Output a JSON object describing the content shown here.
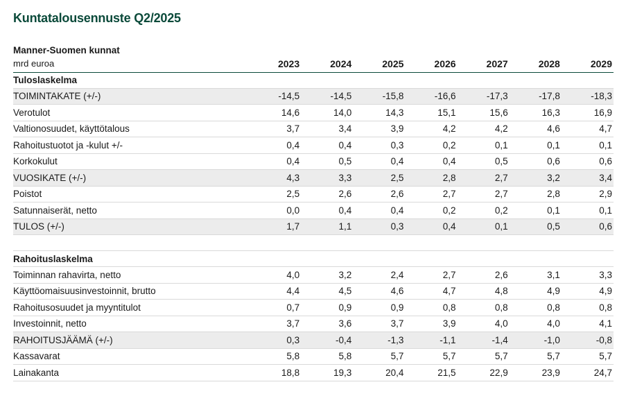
{
  "title": "Kuntatalousennuste Q2/2025",
  "table": {
    "region": "Manner-Suomen kunnat",
    "unit": "mrd euroa",
    "years": [
      "2023",
      "2024",
      "2025",
      "2026",
      "2027",
      "2028",
      "2029"
    ],
    "sections": [
      {
        "heading": "Tuloslaskelma",
        "rows": [
          {
            "label": "TOIMINTAKATE (+/-)",
            "shaded": true,
            "values": [
              "-14,5",
              "-14,5",
              "-15,8",
              "-16,6",
              "-17,3",
              "-17,8",
              "-18,3"
            ]
          },
          {
            "label": "Verotulot",
            "shaded": false,
            "values": [
              "14,6",
              "14,0",
              "14,3",
              "15,1",
              "15,6",
              "16,3",
              "16,9"
            ]
          },
          {
            "label": "Valtionosuudet, käyttötalous",
            "shaded": false,
            "values": [
              "3,7",
              "3,4",
              "3,9",
              "4,2",
              "4,2",
              "4,6",
              "4,7"
            ]
          },
          {
            "label": "Rahoitustuotot ja -kulut +/-",
            "shaded": false,
            "values": [
              "0,4",
              "0,4",
              "0,3",
              "0,2",
              "0,1",
              "0,1",
              "0,1"
            ]
          },
          {
            "label": "Korkokulut",
            "shaded": false,
            "values": [
              "0,4",
              "0,5",
              "0,4",
              "0,4",
              "0,5",
              "0,6",
              "0,6"
            ]
          },
          {
            "label": "VUOSIKATE (+/-)",
            "shaded": true,
            "values": [
              "4,3",
              "3,3",
              "2,5",
              "2,8",
              "2,7",
              "3,2",
              "3,4"
            ]
          },
          {
            "label": "Poistot",
            "shaded": false,
            "values": [
              "2,5",
              "2,6",
              "2,6",
              "2,7",
              "2,7",
              "2,8",
              "2,9"
            ]
          },
          {
            "label": "Satunnaiserät, netto",
            "shaded": false,
            "values": [
              "0,0",
              "0,4",
              "0,4",
              "0,2",
              "0,2",
              "0,1",
              "0,1"
            ]
          },
          {
            "label": "TULOS (+/-)",
            "shaded": true,
            "values": [
              "1,7",
              "1,1",
              "0,3",
              "0,4",
              "0,1",
              "0,5",
              "0,6"
            ]
          }
        ]
      },
      {
        "heading": "Rahoituslaskelma",
        "rows": [
          {
            "label": "Toiminnan rahavirta, netto",
            "shaded": false,
            "values": [
              "4,0",
              "3,2",
              "2,4",
              "2,7",
              "2,6",
              "3,1",
              "3,3"
            ]
          },
          {
            "label": "Käyttöomaisuusinvestoinnit, brutto",
            "shaded": false,
            "values": [
              "4,4",
              "4,5",
              "4,6",
              "4,7",
              "4,8",
              "4,9",
              "4,9"
            ]
          },
          {
            "label": "Rahoitusosuudet ja myyntitulot",
            "shaded": false,
            "values": [
              "0,7",
              "0,9",
              "0,9",
              "0,8",
              "0,8",
              "0,8",
              "0,8"
            ]
          },
          {
            "label": "Investoinnit, netto",
            "shaded": false,
            "values": [
              "3,7",
              "3,6",
              "3,7",
              "3,9",
              "4,0",
              "4,0",
              "4,1"
            ]
          },
          {
            "label": "RAHOITUSJÄÄMÄ (+/-)",
            "shaded": true,
            "values": [
              "0,3",
              "-0,4",
              "-1,3",
              "-1,1",
              "-1,4",
              "-1,0",
              "-0,8"
            ]
          },
          {
            "label": "Kassavarat",
            "shaded": false,
            "values": [
              "5,8",
              "5,8",
              "5,7",
              "5,7",
              "5,7",
              "5,7",
              "5,7"
            ]
          },
          {
            "label": "Lainakanta",
            "shaded": false,
            "values": [
              "18,8",
              "19,3",
              "20,4",
              "21,5",
              "22,9",
              "23,9",
              "24,7"
            ]
          }
        ]
      }
    ]
  },
  "colors": {
    "title": "#0b4a3a",
    "header_rule": "#0b4a3a",
    "shaded_row": "#ececec",
    "row_rule": "#d9d9d9"
  }
}
